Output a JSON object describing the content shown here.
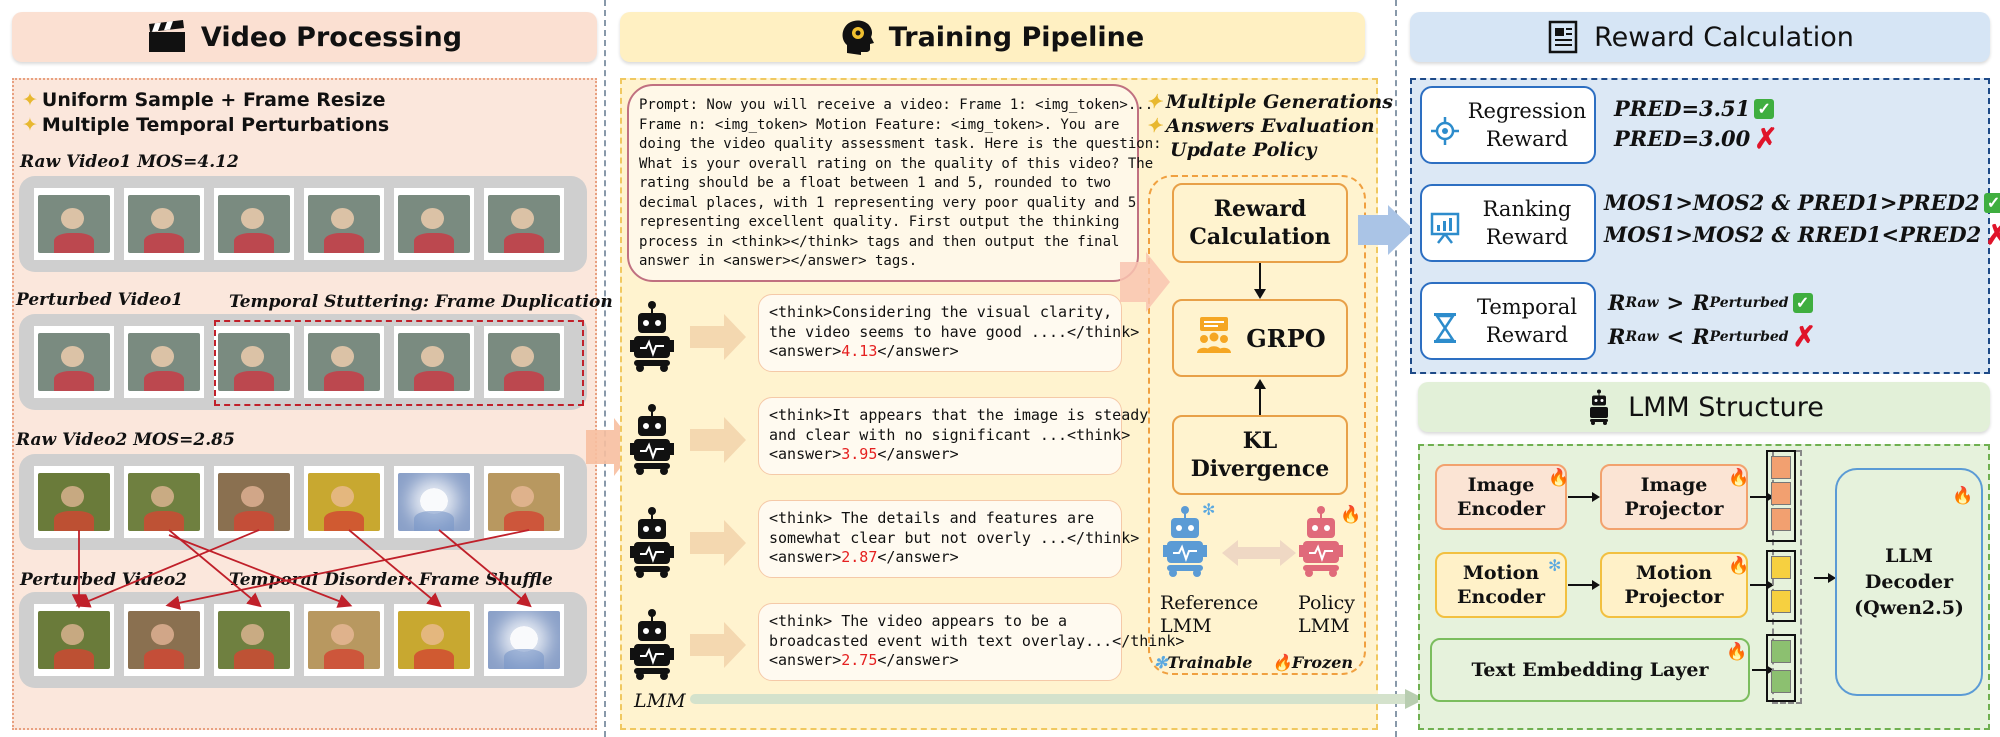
{
  "headers": {
    "video": "Video Processing",
    "training": "Training Pipeline",
    "reward": "Reward Calculation",
    "lmm": "LMM Structure"
  },
  "video_processing": {
    "bullets": [
      "Uniform Sample + Frame Resize",
      "Multiple Temporal  Perturbations"
    ],
    "raw1_label": "Raw Video1 MOS=4.12",
    "perturbed1_label": "Perturbed Video1",
    "stutter_label": "Temporal Stuttering: Frame Duplication",
    "raw2_label": "Raw Video2 MOS=2.85",
    "perturbed2_label": "Perturbed Video2",
    "shuffle_label": "Temporal Disorder: Frame Shuffle"
  },
  "training": {
    "prompt": "Prompt: Now you will receive a video: Frame 1: <img_token>...\nFrame n: <img_token> Motion Feature: <img_token>. You are\ndoing the video quality assessment task. Here is the question:\nWhat is your overall rating on the quality of this video? The\nrating should be a float between 1 and 5, rounded to two\ndecimal places, with 1 representing very poor quality and 5\nrepresenting excellent quality. First output the thinking\nprocess in <think></think> tags and then output the final\nanswer in <answer></answer> tags.",
    "side_bullets": [
      "Multiple Generations",
      "Answers Evaluation",
      "Update Policy"
    ],
    "responses": [
      {
        "l1": "<think>Considering the visual clarity,",
        "l2": "the video seems to have good ....</think>",
        "pre": "<answer>",
        "num": "4.13",
        "post": "</answer>"
      },
      {
        "l1": "<think>It appears that the image is steady",
        "l2": "and clear with no significant ...<think>",
        "pre": "<answer>",
        "num": "3.95",
        "post": "</answer>"
      },
      {
        "l1": "<think> The details and features are",
        "l2": "somewhat clear but not overly ...</think>",
        "pre": "<answer>",
        "num": "2.87",
        "post": "</answer>"
      },
      {
        "l1": "<think> The video appears to be a",
        "l2": "broadcasted event with text overlay...</think>",
        "pre": "<answer>",
        "num": "2.75",
        "post": "</answer>"
      }
    ],
    "lmm_label": "LMM",
    "reward_calc": "Reward\nCalculation",
    "grpo": "GRPO",
    "kl": "KL\nDivergence",
    "reference": "Reference\nLMM",
    "policy": "Policy\nLMM",
    "trainable": "Trainable",
    "frozen": "Frozen"
  },
  "reward": {
    "regression": {
      "title": "Regression\nReward",
      "lines": [
        "PRED=3.51",
        "PRED=3.00"
      ]
    },
    "ranking": {
      "title": "Ranking\nReward",
      "lines": [
        "MOS1>MOS2 & PRED1>PRED2",
        "MOS1>MOS2 & RRED1<PRED2"
      ]
    },
    "temporal": {
      "title": "Temporal\nReward",
      "base": "R",
      "sub_raw": "Raw",
      "sub_pert": "Perturbed",
      "gt": ">",
      "lt": "<"
    }
  },
  "lmm_structure": {
    "image_encoder": "Image\nEncoder",
    "image_projector": "Image\nProjector",
    "motion_encoder": "Motion\nEncoder",
    "motion_projector": "Motion\nProjector",
    "text_embedding": "Text Embedding Layer",
    "llm_decoder": "LLM\nDecoder\n(Qwen2.5)"
  },
  "colors": {
    "video_bg": "#fbe7dc",
    "training_bg": "#fff3cf",
    "reward_bg": "#dce8f5",
    "lmm_bg": "#e6f2dc",
    "accent_red": "#e52020",
    "border_blue": "#2d6fc2",
    "border_green": "#6fb050"
  }
}
